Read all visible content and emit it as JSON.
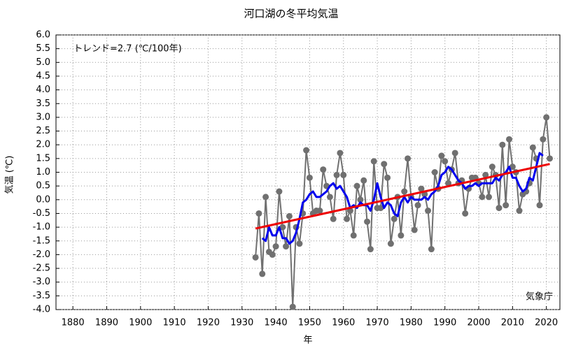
{
  "chart_data": {
    "type": "line",
    "title": "河口湖の冬平均気温",
    "xlabel": "年",
    "ylabel": "気温 (℃)",
    "annotations": [
      "トレンド=2.7 (℃/100年)",
      "気象庁"
    ],
    "x": [
      1934,
      1935,
      1936,
      1937,
      1938,
      1939,
      1940,
      1941,
      1942,
      1943,
      1944,
      1945,
      1946,
      1947,
      1948,
      1949,
      1950,
      1951,
      1952,
      1953,
      1954,
      1955,
      1956,
      1957,
      1958,
      1959,
      1960,
      1961,
      1962,
      1963,
      1964,
      1965,
      1966,
      1967,
      1968,
      1969,
      1970,
      1971,
      1972,
      1973,
      1974,
      1975,
      1976,
      1977,
      1978,
      1979,
      1980,
      1981,
      1982,
      1983,
      1984,
      1985,
      1986,
      1987,
      1988,
      1989,
      1990,
      1991,
      1992,
      1993,
      1994,
      1995,
      1996,
      1997,
      1998,
      1999,
      2000,
      2001,
      2002,
      2003,
      2004,
      2005,
      2006,
      2007,
      2008,
      2009,
      2010,
      2011,
      2012,
      2013,
      2014,
      2015,
      2016,
      2017,
      2018,
      2019,
      2020,
      2021
    ],
    "series": [
      {
        "color": "#707070",
        "markers": true,
        "values": [
          -2.1,
          -0.5,
          -2.7,
          0.1,
          -1.9,
          -2.0,
          -1.7,
          0.3,
          -1.0,
          -1.7,
          -0.6,
          -3.9,
          -1.0,
          -1.6,
          -0.5,
          1.8,
          0.8,
          -0.5,
          -0.4,
          -0.4,
          1.1,
          0.5,
          0.1,
          -0.7,
          0.9,
          1.7,
          0.9,
          -0.7,
          -0.4,
          -1.3,
          0.5,
          0.0,
          0.7,
          -0.8,
          -1.8,
          1.4,
          -0.3,
          -0.3,
          1.3,
          0.8,
          -1.6,
          -0.7,
          0.1,
          -1.3,
          0.3,
          1.5,
          0.1,
          -1.1,
          -0.2,
          0.4,
          0.2,
          -0.4,
          -1.8,
          1.0,
          0.4,
          1.6,
          1.4,
          0.6,
          1.1,
          1.7,
          0.6,
          0.7,
          -0.5,
          0.4,
          0.8,
          0.8,
          0.6,
          0.1,
          0.9,
          0.1,
          1.2,
          0.9,
          -0.3,
          2.0,
          -0.2,
          2.2,
          1.2,
          1.0,
          -0.4,
          0.2,
          0.3,
          0.6,
          1.9,
          1.5,
          -0.2,
          2.2,
          3.0,
          1.5
        ]
      },
      {
        "color": "#0000ee",
        "markers": false,
        "values": [
          null,
          null,
          -1.4,
          -1.5,
          -1.0,
          -1.3,
          -1.3,
          -1.0,
          -1.4,
          -1.4,
          -1.6,
          -1.5,
          -1.2,
          -0.7,
          -0.1,
          0.0,
          0.2,
          0.3,
          0.1,
          0.1,
          0.2,
          0.3,
          0.5,
          0.6,
          0.4,
          0.5,
          0.3,
          0.1,
          -0.3,
          -0.2,
          -0.3,
          -0.1,
          -0.2,
          -0.2,
          -0.4,
          0.0,
          0.6,
          0.1,
          -0.3,
          -0.1,
          -0.2,
          -0.5,
          -0.6,
          -0.1,
          0.1,
          -0.1,
          0.1,
          0.0,
          0.0,
          0.0,
          0.1,
          0.0,
          0.2,
          0.3,
          0.5,
          0.9,
          1.0,
          1.2,
          1.1,
          0.9,
          0.7,
          0.6,
          0.4,
          0.5,
          0.5,
          0.6,
          0.5,
          0.6,
          0.6,
          0.6,
          0.6,
          0.8,
          0.7,
          0.9,
          1.0,
          1.2,
          0.8,
          0.8,
          0.5,
          0.3,
          0.4,
          0.8,
          0.7,
          1.2,
          1.7,
          1.6,
          null,
          null
        ]
      },
      {
        "color": "#ee0000",
        "markers": false,
        "x": [
          1934,
          2021
        ],
        "values": [
          -1.05,
          1.3
        ]
      }
    ],
    "xlim": [
      1875,
      2024
    ],
    "ylim": [
      -4,
      6
    ],
    "xticks": [
      1880,
      1890,
      1900,
      1910,
      1920,
      1930,
      1940,
      1950,
      1960,
      1970,
      1980,
      1990,
      2000,
      2010,
      2020
    ],
    "yticks": [
      {
        "value": 6,
        "label": "6.0"
      },
      {
        "value": 5.5,
        "label": "5.5"
      },
      {
        "value": 5,
        "label": "5.0"
      },
      {
        "value": 4.5,
        "label": "4.5"
      },
      {
        "value": 4,
        "label": "4.0"
      },
      {
        "value": 3.5,
        "label": "3.5"
      },
      {
        "value": 3,
        "label": "3.0"
      },
      {
        "value": 2.5,
        "label": "2.5"
      },
      {
        "value": 2,
        "label": "2.0"
      },
      {
        "value": 1.5,
        "label": "1.5"
      },
      {
        "value": 1,
        "label": "1.0"
      },
      {
        "value": 0.5,
        "label": "0.5"
      },
      {
        "value": 0,
        "label": "0.0"
      },
      {
        "value": -0.5,
        "label": "-0.5"
      },
      {
        "value": -1,
        "label": "-1.0"
      },
      {
        "value": -1.5,
        "label": "-1.5"
      },
      {
        "value": -2,
        "label": "-2.0"
      },
      {
        "value": -2.5,
        "label": "-2.5"
      },
      {
        "value": -3,
        "label": "-3.0"
      },
      {
        "value": -3.5,
        "label": "-3.5"
      },
      {
        "value": -4,
        "label": "-4.0"
      }
    ],
    "grid": true
  }
}
